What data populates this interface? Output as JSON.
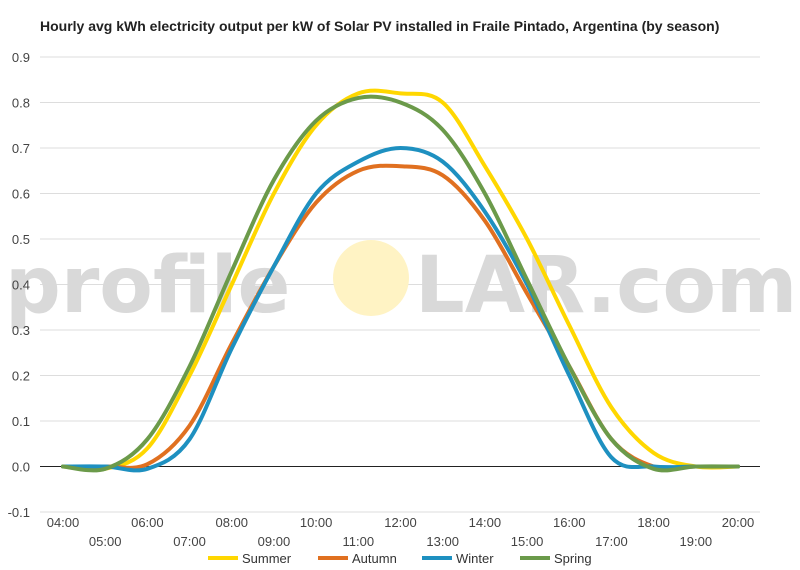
{
  "chart_data": {
    "type": "line",
    "title": "Hourly avg kWh electricity output per kW of Solar PV installed in Fraile Pintado, Argentina (by season)",
    "xlabel": "",
    "ylabel": "",
    "x": [
      "04:00",
      "05:00",
      "06:00",
      "07:00",
      "08:00",
      "09:00",
      "10:00",
      "11:00",
      "12:00",
      "13:00",
      "14:00",
      "15:00",
      "16:00",
      "17:00",
      "18:00",
      "19:00",
      "20:00"
    ],
    "ylim": [
      -0.1,
      0.9
    ],
    "yticks": [
      "-0.1",
      "0.0",
      "0.1",
      "0.2",
      "0.3",
      "0.4",
      "0.5",
      "0.6",
      "0.7",
      "0.8",
      "0.9"
    ],
    "grid": true,
    "legend": "bottom",
    "series": [
      {
        "name": "Summer",
        "color": "#FFD700",
        "values": [
          0.0,
          -0.005,
          0.04,
          0.2,
          0.4,
          0.6,
          0.75,
          0.82,
          0.82,
          0.8,
          0.66,
          0.5,
          0.31,
          0.13,
          0.03,
          0.0,
          0.0
        ]
      },
      {
        "name": "Autumn",
        "color": "#E07020",
        "values": [
          0.0,
          0.0,
          0.005,
          0.09,
          0.27,
          0.44,
          0.58,
          0.65,
          0.66,
          0.64,
          0.54,
          0.38,
          0.22,
          0.06,
          0.0,
          0.0,
          0.0
        ]
      },
      {
        "name": "Winter",
        "color": "#1E90C0",
        "values": [
          0.0,
          0.0,
          -0.005,
          0.06,
          0.26,
          0.44,
          0.6,
          0.67,
          0.7,
          0.67,
          0.56,
          0.4,
          0.2,
          0.02,
          0.0,
          0.0,
          0.0
        ]
      },
      {
        "name": "Spring",
        "color": "#6B9A4A",
        "values": [
          0.0,
          -0.005,
          0.06,
          0.22,
          0.43,
          0.63,
          0.76,
          0.81,
          0.8,
          0.74,
          0.6,
          0.41,
          0.22,
          0.06,
          -0.005,
          0.0,
          0.0
        ]
      }
    ]
  },
  "watermark": {
    "left_text": "profile",
    "right_text": "LAR.com",
    "sun_color": "#FFF3C4"
  },
  "colors": {
    "grid": "#dddddd",
    "zero_line": "#222222",
    "axis_text": "#444444"
  }
}
